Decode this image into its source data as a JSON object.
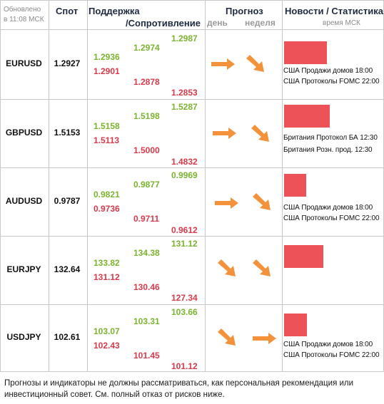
{
  "header": {
    "updated_line1": "Обновлено",
    "updated_line2": "в 11:08 МСК",
    "spot": "Спот",
    "support": "Поддержка",
    "resistance": "/Сопротивление",
    "forecast": "Прогноз",
    "forecast_day": "день",
    "forecast_week": "неделя",
    "news": "Новости / Статистика",
    "news_time": "время МСК"
  },
  "colors": {
    "support": "#7ab42e",
    "resistance": "#d83a4a",
    "arrow": "#f3923a",
    "news_bar": "#ee5259"
  },
  "rows": [
    {
      "symbol": "EURUSD",
      "spot": "1.2927",
      "s1_g": "1.2936",
      "s1_r": "1.2901",
      "s2_g": "1.2974",
      "s2_r": "1.2878",
      "s3_g": "1.2987",
      "s3_r": "1.2853",
      "day_arrow": "arrow-right-icon",
      "week_arrow": "arrow-down-right-icon",
      "news": [
        "США Продажи домов 18:00",
        "США Протоколы FOMC 22:00"
      ]
    },
    {
      "symbol": "GBPUSD",
      "spot": "1.5153",
      "s1_g": "1.5158",
      "s1_r": "1.5113",
      "s2_g": "1.5198",
      "s2_r": "1.5000",
      "s3_g": "1.5287",
      "s3_r": "1.4832",
      "day_arrow": "arrow-right-icon",
      "week_arrow": "arrow-down-right-icon",
      "news": [
        "Британия Протокол БА 12:30",
        "Британия Розн. прод. 12:30"
      ]
    },
    {
      "symbol": "AUDUSD",
      "spot": "0.9787",
      "s1_g": "0.9821",
      "s1_r": "0.9736",
      "s2_g": "0.9877",
      "s2_r": "0.9711",
      "s3_g": "0.9969",
      "s3_r": "0.9612",
      "day_arrow": "arrow-right-icon",
      "week_arrow": "arrow-down-right-icon",
      "news": [
        "США Продажи домов 18:00",
        "США Протоколы FOMC 22:00"
      ]
    },
    {
      "symbol": "EURJPY",
      "spot": "132.64",
      "s1_g": "133.82",
      "s1_r": "131.12",
      "s2_g": "134.38",
      "s2_r": "130.46",
      "s3_g": "131.12",
      "s3_r": "127.34",
      "day_arrow": "arrow-down-right-icon",
      "week_arrow": "arrow-down-right-icon",
      "news": []
    },
    {
      "symbol": "USDJPY",
      "spot": "102.61",
      "s1_g": "103.07",
      "s1_r": "102.43",
      "s2_g": "103.31",
      "s2_r": "101.45",
      "s3_g": "103.66",
      "s3_r": "101.12",
      "day_arrow": "arrow-down-right-icon",
      "week_arrow": "arrow-right-icon",
      "news": [
        "США Продажи домов 18:00",
        "США Протоколы FOMC 22:00"
      ]
    }
  ],
  "footer": "Прогнозы и индикаторы не должны рассматриваться, как персональная рекомендация или инвестиционный совет. См. полный отказ от рисков ниже."
}
